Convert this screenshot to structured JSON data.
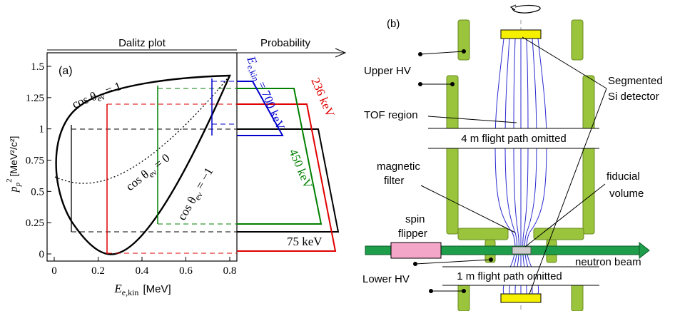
{
  "left_panel": {
    "title": "Dalitz plot",
    "probability_label": "Probability",
    "panel_label": "(a)",
    "xlabel": "E",
    "xlabel_sub": "e,kin",
    "xlabel_unit": "[MeV]",
    "ylabel": "p",
    "ylabel_sub": "p",
    "ylabel_sup": "2",
    "ylabel_unit": "[MeV²/c²]",
    "x_ticks": [
      "0",
      "0.2",
      "0.4",
      "0.6",
      "0.8"
    ],
    "y_ticks": [
      "0",
      "0.25",
      "0.5",
      "0.75",
      "1",
      "1.25",
      "1.5"
    ],
    "curve_labels": {
      "plus1": "cos θ",
      "plus1_sub": "eν",
      "plus1_val": " = 1",
      "zero": "cos θ",
      "zero_sub": "eν",
      "zero_val": " = 0",
      "minus1": "cos θ",
      "minus1_sub": "eν",
      "minus1_val": " = −1"
    },
    "energy_labels": {
      "e700_main": "E",
      "e700_sub": "e,kin",
      "e700_val": " = 700 keV",
      "e450": "450 keV",
      "e236": "236 keV",
      "e75": "75 keV"
    },
    "colors": {
      "e75": "#000000",
      "e236": "#e00000",
      "e450": "#008000",
      "e700": "#0000cc"
    }
  },
  "right_panel": {
    "panel_label": "(b)",
    "labels": {
      "upper_hv": "Upper HV",
      "tof_region": "TOF region",
      "flight_4m": "4 m flight path omitted",
      "magnetic_filter_1": "magnetic",
      "magnetic_filter_2": "filter",
      "spin_flipper_1": "spin",
      "spin_flipper_2": "flipper",
      "lower_hv": "Lower HV",
      "flight_1m": "1 m flight path omitted",
      "segmented_1": "Segmented",
      "segmented_2": "Si detector",
      "fiducial_1": "fiducial",
      "fiducial_2": "volume",
      "neutron_beam": "neutron beam"
    },
    "colors": {
      "electrode": "#9ac43c",
      "electrode_stroke": "#6a8a20",
      "detector": "#f5f000",
      "beam": "#1e9e4a",
      "flipper": "#f4a6c8",
      "field_lines": "#2a2ad0"
    }
  }
}
